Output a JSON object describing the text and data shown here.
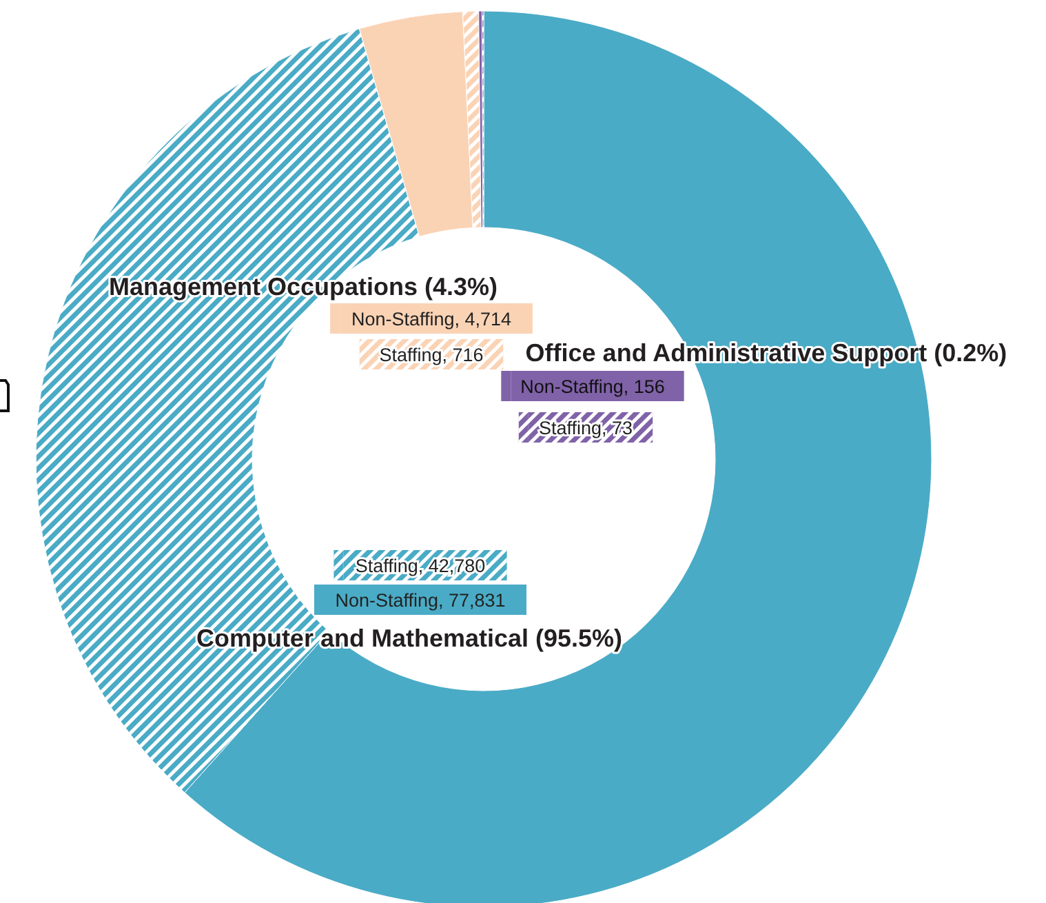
{
  "chart_data": {
    "type": "donut",
    "categories": [
      "Non-Staffing, 77,831",
      "Staffing, 42,780",
      "Non-Staffing, 4,714",
      "Staffing, 716",
      "Non-Staffing, 156",
      "Staffing, 73"
    ],
    "values": [
      77831,
      42780,
      4714,
      716,
      156,
      73
    ],
    "colors": [
      "#4aabc6",
      "#4aabc6",
      "#fad3b5",
      "#fad3b5",
      "#8062a8",
      "#8062a8"
    ],
    "legend": "center",
    "annotations": [
      "Computer and Mathematical (95.5%)",
      "Management Occupations (4.3%)",
      "Office and Administrative Support (0.2%)"
    ]
  }
}
